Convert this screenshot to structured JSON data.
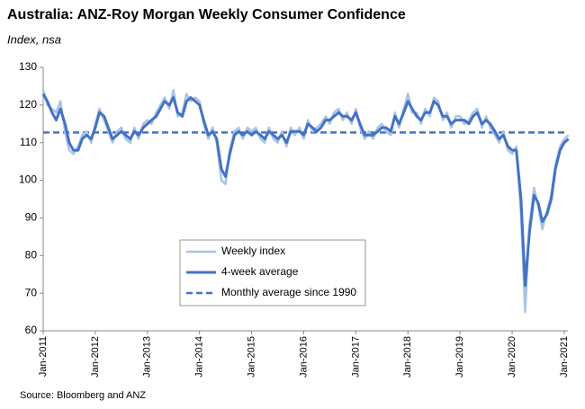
{
  "chart_data": {
    "type": "line",
    "title": "Australia: ANZ-Roy Morgan Weekly Consumer Confidence",
    "subtitle": "Index, nsa",
    "source": "Source: Bloomberg and ANZ",
    "x": [
      2011.0,
      2011.08,
      2011.17,
      2011.25,
      2011.33,
      2011.42,
      2011.5,
      2011.58,
      2011.67,
      2011.75,
      2011.83,
      2011.92,
      2012.0,
      2012.08,
      2012.17,
      2012.25,
      2012.33,
      2012.42,
      2012.5,
      2012.58,
      2012.67,
      2012.75,
      2012.83,
      2012.92,
      2013.0,
      2013.08,
      2013.17,
      2013.25,
      2013.33,
      2013.42,
      2013.5,
      2013.58,
      2013.67,
      2013.75,
      2013.83,
      2013.92,
      2014.0,
      2014.08,
      2014.17,
      2014.25,
      2014.33,
      2014.42,
      2014.5,
      2014.58,
      2014.67,
      2014.75,
      2014.83,
      2014.92,
      2015.0,
      2015.08,
      2015.17,
      2015.25,
      2015.33,
      2015.42,
      2015.5,
      2015.58,
      2015.67,
      2015.75,
      2015.83,
      2015.92,
      2016.0,
      2016.08,
      2016.17,
      2016.25,
      2016.33,
      2016.42,
      2016.5,
      2016.58,
      2016.67,
      2016.75,
      2016.83,
      2016.92,
      2017.0,
      2017.08,
      2017.17,
      2017.25,
      2017.33,
      2017.42,
      2017.5,
      2017.58,
      2017.67,
      2017.75,
      2017.83,
      2017.92,
      2018.0,
      2018.08,
      2018.17,
      2018.25,
      2018.33,
      2018.42,
      2018.5,
      2018.58,
      2018.67,
      2018.75,
      2018.83,
      2018.92,
      2019.0,
      2019.08,
      2019.17,
      2019.25,
      2019.33,
      2019.42,
      2019.5,
      2019.58,
      2019.67,
      2019.75,
      2019.83,
      2019.92,
      2020.0,
      2020.08,
      2020.17,
      2020.25,
      2020.33,
      2020.42,
      2020.5,
      2020.58,
      2020.67,
      2020.75,
      2020.83,
      2020.92,
      2021.0,
      2021.08
    ],
    "series": [
      {
        "name": "Weekly index",
        "color": "#a9c4e4",
        "width": 2.5,
        "values": [
          124,
          120,
          119,
          118,
          121,
          113,
          108,
          107,
          109,
          112,
          113,
          110,
          115,
          119,
          116,
          113,
          110,
          113,
          114,
          111,
          110,
          114,
          111,
          115,
          116,
          115,
          118,
          120,
          122,
          119,
          124,
          117,
          118,
          123,
          121,
          122,
          121,
          115,
          111,
          114,
          110,
          100,
          99,
          108,
          113,
          114,
          111,
          114,
          113,
          114,
          111,
          110,
          114,
          111,
          110,
          113,
          109,
          114,
          112,
          114,
          111,
          116,
          113,
          114,
          115,
          117,
          115,
          118,
          119,
          116,
          118,
          115,
          119,
          114,
          111,
          113,
          111,
          114,
          115,
          113,
          112,
          118,
          114,
          119,
          123,
          118,
          118,
          115,
          119,
          117,
          122,
          121,
          116,
          118,
          114,
          117,
          117,
          115,
          116,
          118,
          119,
          114,
          117,
          114,
          112,
          110,
          113,
          108,
          107,
          109,
          91,
          65,
          88,
          98,
          93,
          87,
          92,
          96,
          104,
          109,
          111,
          112
        ]
      },
      {
        "name": "4-week average",
        "color": "#4472c4",
        "width": 3,
        "values": [
          123,
          121,
          118,
          116,
          119,
          115,
          110,
          108,
          108,
          111,
          112,
          111,
          114,
          118,
          117,
          114,
          111,
          112,
          113,
          112,
          111,
          113,
          112,
          114,
          115,
          116,
          117,
          119,
          121,
          120,
          122,
          118,
          117,
          121,
          122,
          121,
          120,
          116,
          112,
          113,
          111,
          103,
          101,
          107,
          112,
          113,
          112,
          113,
          112,
          113,
          112,
          111,
          113,
          112,
          111,
          112,
          110,
          113,
          113,
          113,
          112,
          115,
          114,
          113,
          114,
          116,
          116,
          117,
          118,
          117,
          117,
          116,
          118,
          115,
          112,
          112,
          112,
          113,
          114,
          114,
          113,
          117,
          115,
          118,
          121,
          119,
          117,
          116,
          118,
          118,
          121,
          120,
          117,
          117,
          115,
          116,
          116,
          116,
          115,
          117,
          118,
          115,
          116,
          115,
          113,
          111,
          112,
          109,
          108,
          108,
          95,
          72,
          86,
          96,
          94,
          89,
          91,
          95,
          103,
          108,
          110,
          111
        ]
      }
    ],
    "reference_line": {
      "name": "Monthly average since 1990",
      "value": 112.7,
      "color": "#4472c4"
    },
    "xlim": [
      2011,
      2021.07
    ],
    "xticks": [
      {
        "value": 2011,
        "label": "Jan-2011"
      },
      {
        "value": 2012,
        "label": "Jan-2012"
      },
      {
        "value": 2013,
        "label": "Jan-2013"
      },
      {
        "value": 2014,
        "label": "Jan-2014"
      },
      {
        "value": 2015,
        "label": "Jan-2015"
      },
      {
        "value": 2016,
        "label": "Jan-2016"
      },
      {
        "value": 2017,
        "label": "Jan-2017"
      },
      {
        "value": 2018,
        "label": "Jan-2018"
      },
      {
        "value": 2019,
        "label": "Jan-2019"
      },
      {
        "value": 2020,
        "label": "Jan-2020"
      },
      {
        "value": 2021,
        "label": "Jan-2021"
      }
    ],
    "ylim": [
      60,
      130
    ],
    "yticks": [
      60,
      70,
      80,
      90,
      100,
      110,
      120,
      130
    ]
  }
}
